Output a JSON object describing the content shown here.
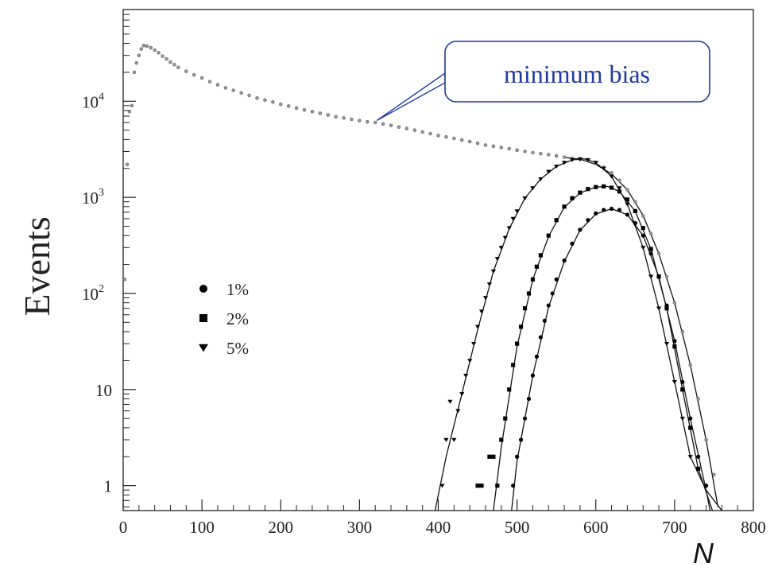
{
  "chart_data": {
    "type": "scatter",
    "title": "",
    "xlabel": "N",
    "ylabel": "Events",
    "xlim": [
      0,
      800
    ],
    "ylim": [
      0.55,
      90000
    ],
    "yscale": "log",
    "x_ticks": [
      {
        "value": 0,
        "label": "0"
      },
      {
        "value": 100,
        "label": "100"
      },
      {
        "value": 200,
        "label": "200"
      },
      {
        "value": 300,
        "label": "300"
      },
      {
        "value": 400,
        "label": "400"
      },
      {
        "value": 500,
        "label": "500"
      },
      {
        "value": 600,
        "label": "600"
      },
      {
        "value": 700,
        "label": "700"
      },
      {
        "value": 800,
        "label": "800"
      }
    ],
    "y_ticks": [
      {
        "value": 1,
        "label": "1",
        "sup": ""
      },
      {
        "value": 10,
        "label": "10",
        "sup": ""
      },
      {
        "value": 100,
        "label": "10",
        "sup": "2"
      },
      {
        "value": 1000,
        "label": "10",
        "sup": "3"
      },
      {
        "value": 10000,
        "label": "10",
        "sup": "4"
      }
    ],
    "annotation": {
      "text": "minimum bias",
      "x": 322,
      "y": 6300
    },
    "legend": {
      "position": "left",
      "entries": [
        {
          "label": "1%",
          "marker": "circle"
        },
        {
          "label": "2%",
          "marker": "square"
        },
        {
          "label": "5%",
          "marker": "triangle-down"
        }
      ]
    },
    "series": [
      {
        "label": "minimum bias",
        "marker": "small-open",
        "points": [
          [
            2,
            140
          ],
          [
            5,
            2200
          ],
          [
            8,
            7800
          ],
          [
            11,
            9000
          ],
          [
            14,
            20000
          ],
          [
            17,
            25000
          ],
          [
            20,
            30000
          ],
          [
            23,
            35000
          ],
          [
            26,
            38000
          ],
          [
            30,
            37500
          ],
          [
            35,
            36000
          ],
          [
            40,
            34000
          ],
          [
            45,
            32000
          ],
          [
            50,
            29500
          ],
          [
            55,
            27500
          ],
          [
            60,
            25500
          ],
          [
            65,
            24000
          ],
          [
            70,
            22500
          ],
          [
            80,
            20500
          ],
          [
            90,
            18800
          ],
          [
            100,
            17500
          ],
          [
            110,
            16000
          ],
          [
            120,
            14800
          ],
          [
            130,
            13800
          ],
          [
            140,
            13000
          ],
          [
            150,
            12200
          ],
          [
            160,
            11500
          ],
          [
            170,
            10800
          ],
          [
            180,
            10300
          ],
          [
            190,
            9800
          ],
          [
            200,
            9300
          ],
          [
            210,
            8900
          ],
          [
            220,
            8500
          ],
          [
            230,
            8100
          ],
          [
            240,
            7800
          ],
          [
            250,
            7500
          ],
          [
            260,
            7200
          ],
          [
            270,
            6900
          ],
          [
            280,
            6700
          ],
          [
            290,
            6500
          ],
          [
            300,
            6300
          ],
          [
            310,
            6100
          ],
          [
            320,
            6000
          ],
          [
            330,
            5800
          ],
          [
            340,
            5600
          ],
          [
            350,
            5400
          ],
          [
            360,
            5200
          ],
          [
            370,
            5000
          ],
          [
            380,
            4800
          ],
          [
            390,
            4600
          ],
          [
            400,
            4400
          ],
          [
            410,
            4250
          ],
          [
            420,
            4100
          ],
          [
            430,
            3950
          ],
          [
            440,
            3800
          ],
          [
            450,
            3650
          ],
          [
            460,
            3500
          ],
          [
            470,
            3400
          ],
          [
            480,
            3300
          ],
          [
            490,
            3200
          ],
          [
            500,
            3100
          ],
          [
            510,
            3000
          ],
          [
            520,
            2920
          ],
          [
            530,
            2850
          ],
          [
            540,
            2780
          ],
          [
            550,
            2700
          ],
          [
            560,
            2620
          ],
          [
            570,
            2550
          ],
          [
            580,
            2480
          ],
          [
            590,
            2400
          ],
          [
            600,
            2250
          ],
          [
            610,
            2050
          ],
          [
            620,
            1800
          ],
          [
            630,
            1500
          ],
          [
            640,
            1200
          ],
          [
            650,
            900
          ],
          [
            660,
            640
          ],
          [
            670,
            420
          ],
          [
            680,
            260
          ],
          [
            690,
            150
          ],
          [
            700,
            80
          ],
          [
            710,
            40
          ],
          [
            720,
            18
          ],
          [
            730,
            8
          ],
          [
            740,
            3
          ],
          [
            750,
            1.3
          ]
        ]
      },
      {
        "label": "5%",
        "marker": "triangle-down",
        "points": [
          [
            405,
            1
          ],
          [
            410,
            3
          ],
          [
            415,
            7.5
          ],
          [
            420,
            3
          ],
          [
            425,
            6
          ],
          [
            430,
            9
          ],
          [
            435,
            14
          ],
          [
            440,
            20
          ],
          [
            445,
            30
          ],
          [
            450,
            45
          ],
          [
            455,
            65
          ],
          [
            460,
            90
          ],
          [
            465,
            125
          ],
          [
            470,
            170
          ],
          [
            475,
            230
          ],
          [
            480,
            300
          ],
          [
            485,
            380
          ],
          [
            490,
            480
          ],
          [
            495,
            600
          ],
          [
            500,
            720
          ],
          [
            510,
            980
          ],
          [
            520,
            1250
          ],
          [
            530,
            1550
          ],
          [
            540,
            1850
          ],
          [
            550,
            2100
          ],
          [
            560,
            2300
          ],
          [
            570,
            2450
          ],
          [
            580,
            2500
          ],
          [
            590,
            2450
          ],
          [
            600,
            2300
          ],
          [
            610,
            2000
          ],
          [
            620,
            1650
          ],
          [
            630,
            1250
          ],
          [
            640,
            850
          ],
          [
            650,
            520
          ],
          [
            660,
            300
          ],
          [
            670,
            150
          ],
          [
            680,
            70
          ],
          [
            690,
            30
          ],
          [
            700,
            12
          ],
          [
            710,
            5
          ],
          [
            720,
            2
          ]
        ]
      },
      {
        "label": "2%",
        "marker": "square",
        "points": [
          [
            450,
            1
          ],
          [
            455,
            1
          ],
          [
            465,
            2
          ],
          [
            470,
            2
          ],
          [
            475,
            1
          ],
          [
            480,
            3
          ],
          [
            485,
            5
          ],
          [
            490,
            10
          ],
          [
            495,
            18
          ],
          [
            500,
            30
          ],
          [
            505,
            45
          ],
          [
            510,
            70
          ],
          [
            515,
            100
          ],
          [
            520,
            140
          ],
          [
            525,
            190
          ],
          [
            530,
            250
          ],
          [
            540,
            400
          ],
          [
            550,
            580
          ],
          [
            560,
            800
          ],
          [
            570,
            980
          ],
          [
            580,
            1120
          ],
          [
            590,
            1220
          ],
          [
            600,
            1280
          ],
          [
            610,
            1300
          ],
          [
            620,
            1260
          ],
          [
            630,
            1150
          ],
          [
            640,
            950
          ],
          [
            650,
            720
          ],
          [
            660,
            480
          ],
          [
            670,
            290
          ],
          [
            680,
            150
          ],
          [
            690,
            70
          ],
          [
            700,
            28
          ],
          [
            710,
            10
          ],
          [
            720,
            4
          ],
          [
            730,
            1.5
          ]
        ]
      },
      {
        "label": "1%",
        "marker": "circle",
        "points": [
          [
            495,
            1
          ],
          [
            500,
            2
          ],
          [
            505,
            3
          ],
          [
            510,
            5
          ],
          [
            515,
            8
          ],
          [
            520,
            14
          ],
          [
            525,
            22
          ],
          [
            530,
            35
          ],
          [
            535,
            52
          ],
          [
            540,
            75
          ],
          [
            545,
            100
          ],
          [
            550,
            140
          ],
          [
            560,
            220
          ],
          [
            570,
            330
          ],
          [
            580,
            460
          ],
          [
            590,
            580
          ],
          [
            600,
            680
          ],
          [
            610,
            740
          ],
          [
            620,
            760
          ],
          [
            630,
            740
          ],
          [
            640,
            660
          ],
          [
            650,
            540
          ],
          [
            660,
            400
          ],
          [
            670,
            260
          ],
          [
            680,
            150
          ],
          [
            690,
            75
          ],
          [
            700,
            32
          ],
          [
            710,
            12
          ],
          [
            720,
            5
          ],
          [
            730,
            2
          ],
          [
            740,
            1
          ]
        ]
      }
    ],
    "fits": [
      {
        "label": "minimum bias",
        "points": [
          [
            560,
            2600
          ],
          [
            580,
            2500
          ],
          [
            600,
            2200
          ],
          [
            620,
            1750
          ],
          [
            640,
            1200
          ],
          [
            660,
            650
          ],
          [
            680,
            260
          ],
          [
            700,
            80
          ],
          [
            720,
            18
          ],
          [
            740,
            3
          ],
          [
            755,
            0.6
          ]
        ]
      },
      {
        "label": "5%",
        "points": [
          [
            396,
            0.55
          ],
          [
            410,
            2
          ],
          [
            430,
            9
          ],
          [
            450,
            42
          ],
          [
            470,
            170
          ],
          [
            490,
            470
          ],
          [
            510,
            980
          ],
          [
            530,
            1550
          ],
          [
            550,
            2100
          ],
          [
            570,
            2450
          ],
          [
            585,
            2520
          ],
          [
            600,
            2300
          ],
          [
            620,
            1650
          ],
          [
            640,
            850
          ],
          [
            660,
            300
          ],
          [
            680,
            70
          ],
          [
            700,
            12
          ],
          [
            720,
            2
          ],
          [
            740,
            0.9
          ],
          [
            760,
            0.55
          ]
        ]
      },
      {
        "label": "2%",
        "points": [
          [
            470,
            0.55
          ],
          [
            480,
            2.5
          ],
          [
            500,
            28
          ],
          [
            520,
            140
          ],
          [
            540,
            390
          ],
          [
            560,
            790
          ],
          [
            580,
            1110
          ],
          [
            600,
            1280
          ],
          [
            615,
            1300
          ],
          [
            630,
            1150
          ],
          [
            650,
            720
          ],
          [
            670,
            290
          ],
          [
            690,
            70
          ],
          [
            710,
            10
          ],
          [
            730,
            1.5
          ],
          [
            748,
            0.55
          ]
        ]
      },
      {
        "label": "1%",
        "points": [
          [
            493,
            0.55
          ],
          [
            500,
            1.8
          ],
          [
            520,
            14
          ],
          [
            540,
            72
          ],
          [
            560,
            215
          ],
          [
            580,
            455
          ],
          [
            600,
            670
          ],
          [
            620,
            760
          ],
          [
            640,
            660
          ],
          [
            660,
            400
          ],
          [
            680,
            150
          ],
          [
            700,
            32
          ],
          [
            720,
            5
          ],
          [
            740,
            0.9
          ],
          [
            745,
            0.55
          ]
        ]
      }
    ]
  }
}
